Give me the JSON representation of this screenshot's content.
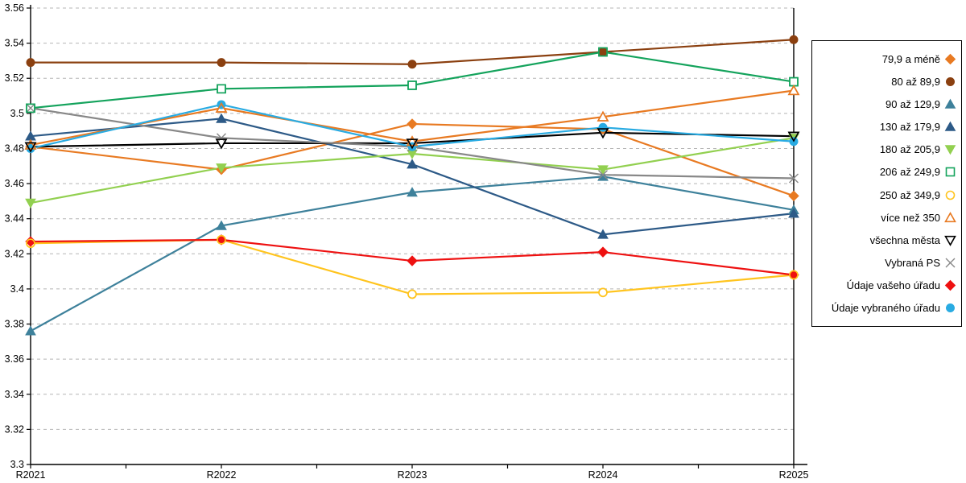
{
  "chart_data": {
    "type": "line",
    "title": "",
    "xlabel": "",
    "ylabel": "",
    "x_categories": [
      "R2021",
      "R2022",
      "R2023",
      "R2024",
      "R2025"
    ],
    "ylim": [
      3.3,
      3.56
    ],
    "ytick_step": 0.02,
    "grid": "horizontal-dashed",
    "legend_position": "right",
    "series": [
      {
        "name": "79,9 a méně",
        "color": "#E87A22",
        "marker": "diamond",
        "fill": "filled",
        "values": [
          3.481,
          3.468,
          3.494,
          3.491,
          3.453
        ]
      },
      {
        "name": "80 až 89,9",
        "color": "#8B4010",
        "marker": "circle",
        "fill": "filled",
        "values": [
          3.529,
          3.529,
          3.528,
          3.535,
          3.542
        ]
      },
      {
        "name": "90 až 129,9",
        "color": "#3E819B",
        "marker": "triangle-up",
        "fill": "filled",
        "values": [
          3.376,
          3.436,
          3.455,
          3.464,
          3.445
        ]
      },
      {
        "name": "130 až 179,9",
        "color": "#2D5A87",
        "marker": "triangle-up",
        "fill": "filled",
        "values": [
          3.487,
          3.497,
          3.471,
          3.431,
          3.443
        ]
      },
      {
        "name": "180 až 205,9",
        "color": "#92D050",
        "marker": "triangle-down",
        "fill": "filled",
        "values": [
          3.449,
          3.469,
          3.477,
          3.468,
          3.486
        ]
      },
      {
        "name": "206 až 249,9",
        "color": "#14A35C",
        "marker": "square",
        "fill": "open",
        "values": [
          3.503,
          3.514,
          3.516,
          3.535,
          3.518
        ]
      },
      {
        "name": "250 až 349,9",
        "color": "#FFC41E",
        "marker": "circle",
        "fill": "open",
        "values": [
          3.426,
          3.428,
          3.397,
          3.398,
          3.408
        ]
      },
      {
        "name": "více než 350",
        "color": "#E87A22",
        "marker": "triangle-up",
        "fill": "open",
        "values": [
          3.482,
          3.503,
          3.484,
          3.498,
          3.513
        ]
      },
      {
        "name": "všechna města",
        "color": "#000000",
        "marker": "triangle-down",
        "fill": "open",
        "values": [
          3.481,
          3.483,
          3.483,
          3.489,
          3.487
        ]
      },
      {
        "name": "Vybraná PS",
        "color": "#888888",
        "marker": "x",
        "fill": "line",
        "values": [
          3.503,
          3.486,
          3.481,
          3.465,
          3.463
        ]
      },
      {
        "name": "Údaje vašeho úřadu",
        "color": "#EE1111",
        "marker": "diamond",
        "fill": "filled",
        "values": [
          3.427,
          3.428,
          3.416,
          3.421,
          3.408
        ]
      },
      {
        "name": "Údaje vybraného úřadu",
        "color": "#29ABE2",
        "marker": "circle",
        "fill": "filled",
        "values": [
          3.48,
          3.505,
          3.481,
          3.492,
          3.484
        ]
      }
    ]
  }
}
